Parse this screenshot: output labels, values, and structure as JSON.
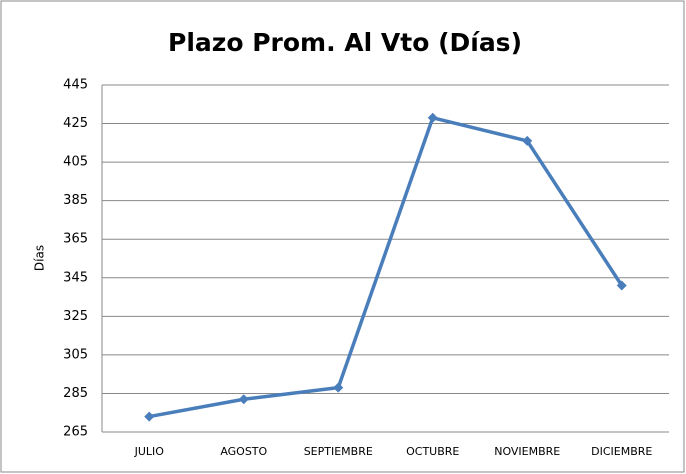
{
  "chart_data": {
    "type": "line",
    "title": "Plazo Prom. Al Vto (Días)",
    "y_label": "Días",
    "categories": [
      "JULIO",
      "AGOSTO",
      "SEPTIEMBRE",
      "OCTUBRE",
      "NOVIEMBRE",
      "DICIEMBRE"
    ],
    "series": [
      {
        "name": "Días",
        "color": "#4a7ebb",
        "values": [
          273,
          282,
          288,
          428,
          416,
          341
        ]
      }
    ],
    "ylim": [
      265,
      445
    ],
    "yticks": [
      265,
      285,
      305,
      325,
      345,
      365,
      385,
      405,
      425,
      445
    ],
    "grid": true
  }
}
